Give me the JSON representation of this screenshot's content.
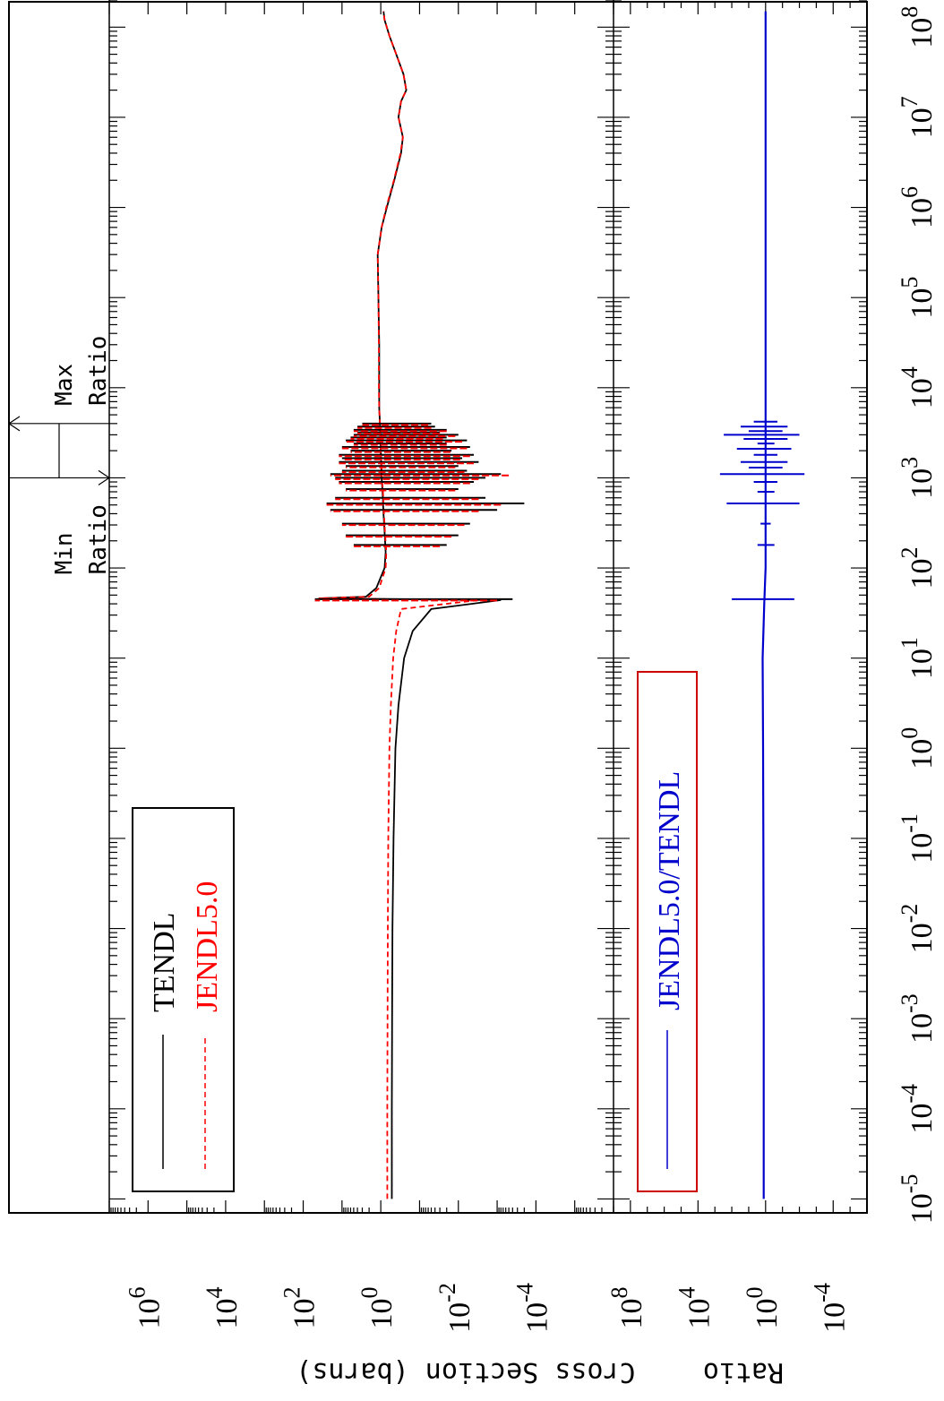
{
  "chart_data": [
    {
      "type": "line",
      "panel": "cross-section",
      "ylabel": "Cross Section (barns)",
      "x_scale": "log",
      "y_scale": "log",
      "xlim": [
        7e-06,
        200000000.0
      ],
      "ylim": [
        1e-06,
        10000000.0
      ],
      "x_ticks": [
        {
          "value": 1e-05,
          "base": "10",
          "exp": "-5"
        },
        {
          "value": 0.0001,
          "base": "10",
          "exp": "-4"
        },
        {
          "value": 0.001,
          "base": "10",
          "exp": "-3"
        },
        {
          "value": 0.01,
          "base": "10",
          "exp": "-2"
        },
        {
          "value": 0.1,
          "base": "10",
          "exp": "-1"
        },
        {
          "value": 1,
          "base": "10",
          "exp": "0"
        },
        {
          "value": 10,
          "base": "10",
          "exp": "1"
        },
        {
          "value": 100,
          "base": "10",
          "exp": "2"
        },
        {
          "value": 1000,
          "base": "10",
          "exp": "3"
        },
        {
          "value": 10000,
          "base": "10",
          "exp": "4"
        },
        {
          "value": 100000,
          "base": "10",
          "exp": "5"
        },
        {
          "value": 1000000,
          "base": "10",
          "exp": "6"
        },
        {
          "value": 10000000,
          "base": "10",
          "exp": "7"
        },
        {
          "value": 100000000,
          "base": "10",
          "exp": "8"
        }
      ],
      "y_ticks": [
        {
          "value": 1000000.0,
          "base": "10",
          "exp": "6"
        },
        {
          "value": 10000.0,
          "base": "10",
          "exp": "4"
        },
        {
          "value": 100.0,
          "base": "10",
          "exp": "2"
        },
        {
          "value": 1,
          "base": "10",
          "exp": "0"
        },
        {
          "value": 0.01,
          "base": "10",
          "exp": "-2"
        },
        {
          "value": 0.0001,
          "base": "10",
          "exp": "-4"
        }
      ],
      "legend": {
        "placement": "bottom-left"
      },
      "series": [
        {
          "name": "TENDL",
          "color": "#000000",
          "dash": "solid",
          "x": [
            1e-05,
            0.0001,
            0.001,
            0.01,
            0.1,
            1,
            3,
            10,
            20,
            35,
            44,
            46,
            48,
            60,
            100,
            150,
            250,
            400,
            700,
            1000,
            2000,
            4000,
            6000,
            10000,
            30000,
            100000,
            300000,
            600000,
            1000000,
            2000000,
            4000000,
            6000000,
            10000000,
            15000000,
            20000000,
            30000000,
            50000000,
            80000000,
            120000000,
            150000000
          ],
          "y": [
            0.52,
            0.52,
            0.51,
            0.5,
            0.47,
            0.42,
            0.35,
            0.25,
            0.15,
            0.05,
            0.0008,
            40,
            2.4,
            1.3,
            0.8,
            0.75,
            0.8,
            0.85,
            0.9,
            0.95,
            1.0,
            1.05,
            1.1,
            1.1,
            1.1,
            1.15,
            1.2,
            0.95,
            0.7,
            0.45,
            0.3,
            0.27,
            0.35,
            0.3,
            0.22,
            0.26,
            0.4,
            0.6,
            0.8,
            0.85
          ]
        },
        {
          "name": "JENDL5.0",
          "color": "#ff0000",
          "dash": "dashed",
          "x": [
            1e-05,
            0.0001,
            0.001,
            0.01,
            0.1,
            1,
            3,
            10,
            20,
            35,
            44,
            46,
            48,
            60,
            100,
            150,
            250,
            400,
            700,
            1000,
            2000,
            4000,
            6000,
            10000,
            30000,
            100000,
            300000,
            600000,
            1000000,
            2000000,
            4000000,
            6000000,
            10000000,
            15000000,
            20000000,
            30000000,
            50000000,
            80000000,
            120000000,
            150000000
          ],
          "y": [
            0.68,
            0.68,
            0.67,
            0.66,
            0.64,
            0.6,
            0.55,
            0.48,
            0.4,
            0.3,
            0.003,
            40,
            2.0,
            1.1,
            0.75,
            0.72,
            0.78,
            0.83,
            0.88,
            0.93,
            1.0,
            1.05,
            1.1,
            1.12,
            1.12,
            1.15,
            1.2,
            0.95,
            0.72,
            0.46,
            0.31,
            0.27,
            0.35,
            0.3,
            0.22,
            0.26,
            0.4,
            0.6,
            0.8,
            0.85
          ]
        }
      ],
      "resonances": [
        {
          "x": 45,
          "tendl": [
            0.0004,
            50
          ],
          "jendl": [
            0.001,
            50
          ]
        },
        {
          "x": 180,
          "tendl": [
            0.02,
            5
          ],
          "jendl": [
            0.03,
            5
          ]
        },
        {
          "x": 230,
          "tendl": [
            0.01,
            8
          ],
          "jendl": [
            0.015,
            8
          ]
        },
        {
          "x": 310,
          "tendl": [
            0.005,
            10
          ],
          "jendl": [
            0.007,
            10
          ]
        },
        {
          "x": 440,
          "tendl": [
            0.001,
            20
          ],
          "jendl": [
            0.003,
            20
          ]
        },
        {
          "x": 520,
          "tendl": [
            0.0002,
            25
          ],
          "jendl": [
            0.0008,
            25
          ]
        },
        {
          "x": 600,
          "tendl": [
            0.002,
            15
          ],
          "jendl": [
            0.003,
            15
          ]
        },
        {
          "x": 750,
          "tendl": [
            0.01,
            8
          ],
          "jendl": [
            0.012,
            8
          ]
        },
        {
          "x": 900,
          "tendl": [
            0.004,
            12
          ],
          "jendl": [
            0.005,
            12
          ]
        },
        {
          "x": 1000,
          "tendl": [
            0.002,
            15
          ],
          "jendl": [
            0.003,
            15
          ]
        },
        {
          "x": 1100,
          "tendl": [
            0.0008,
            20
          ],
          "jendl": [
            0.0005,
            20
          ]
        },
        {
          "x": 1200,
          "tendl": [
            0.006,
            10
          ],
          "jendl": [
            0.007,
            10
          ]
        },
        {
          "x": 1350,
          "tendl": [
            0.01,
            8
          ],
          "jendl": [
            0.012,
            8
          ]
        },
        {
          "x": 1500,
          "tendl": [
            0.003,
            12
          ],
          "jendl": [
            0.004,
            12
          ]
        },
        {
          "x": 1650,
          "tendl": [
            0.008,
            10
          ],
          "jendl": [
            0.009,
            10
          ]
        },
        {
          "x": 1800,
          "tendl": [
            0.004,
            12
          ],
          "jendl": [
            0.005,
            12
          ]
        },
        {
          "x": 2000,
          "tendl": [
            0.015,
            6
          ],
          "jendl": [
            0.016,
            6
          ]
        },
        {
          "x": 2200,
          "tendl": [
            0.005,
            10
          ],
          "jendl": [
            0.006,
            10
          ]
        },
        {
          "x": 2400,
          "tendl": [
            0.02,
            5
          ],
          "jendl": [
            0.02,
            5
          ]
        },
        {
          "x": 2600,
          "tendl": [
            0.006,
            8
          ],
          "jendl": [
            0.008,
            8
          ]
        },
        {
          "x": 2800,
          "tendl": [
            0.02,
            6
          ],
          "jendl": [
            0.025,
            6
          ]
        },
        {
          "x": 3000,
          "tendl": [
            0.01,
            5
          ],
          "jendl": [
            0.012,
            5
          ]
        },
        {
          "x": 3200,
          "tendl": [
            0.03,
            4
          ],
          "jendl": [
            0.03,
            4
          ]
        },
        {
          "x": 3400,
          "tendl": [
            0.02,
            5
          ],
          "jendl": [
            0.02,
            5
          ]
        },
        {
          "x": 3700,
          "tendl": [
            0.04,
            4
          ],
          "jendl": [
            0.05,
            4
          ]
        },
        {
          "x": 4000,
          "tendl": [
            0.05,
            3
          ],
          "jendl": [
            0.06,
            3
          ]
        }
      ]
    },
    {
      "type": "line",
      "panel": "ratio",
      "ylabel": "Ratio",
      "x_scale": "log",
      "y_scale": "log",
      "ylim": [
        1e-06,
        1000000000.0
      ],
      "y_ticks": [
        {
          "value": 100000000.0,
          "base": "10",
          "exp": "8"
        },
        {
          "value": 10000.0,
          "base": "10",
          "exp": "4"
        },
        {
          "value": 1,
          "base": "10",
          "exp": "0"
        },
        {
          "value": 0.0001,
          "base": "10",
          "exp": "-4"
        }
      ],
      "legend": {
        "placement": "bottom-left"
      },
      "series": [
        {
          "name": "JENDL5.0/TENDL",
          "color": "#0000cc",
          "dash": "solid",
          "x": [
            1e-05,
            0.001,
            0.1,
            1,
            10,
            40,
            100,
            1000,
            10000,
            100000,
            1000000,
            10000000,
            150000000
          ],
          "y": [
            1.3,
            1.3,
            1.35,
            1.4,
            1.5,
            1.2,
            1.0,
            1.0,
            1.0,
            1.0,
            1.0,
            1.0,
            1.0
          ]
        }
      ],
      "spikes": [
        {
          "x": 45,
          "range": [
            0.02,
            100
          ]
        },
        {
          "x": 180,
          "range": [
            0.3,
            3
          ]
        },
        {
          "x": 310,
          "range": [
            0.5,
            2
          ]
        },
        {
          "x": 520,
          "range": [
            0.01,
            200
          ]
        },
        {
          "x": 700,
          "range": [
            0.3,
            3
          ]
        },
        {
          "x": 900,
          "range": [
            0.2,
            5
          ]
        },
        {
          "x": 1100,
          "range": [
            0.005,
            500
          ]
        },
        {
          "x": 1300,
          "range": [
            0.1,
            10
          ]
        },
        {
          "x": 1500,
          "range": [
            0.05,
            30
          ]
        },
        {
          "x": 1800,
          "range": [
            0.2,
            5
          ]
        },
        {
          "x": 2100,
          "range": [
            0.03,
            50
          ]
        },
        {
          "x": 2400,
          "range": [
            0.3,
            3
          ]
        },
        {
          "x": 2700,
          "range": [
            0.05,
            20
          ]
        },
        {
          "x": 3000,
          "range": [
            0.01,
            300
          ]
        },
        {
          "x": 3300,
          "range": [
            0.1,
            10
          ]
        },
        {
          "x": 3700,
          "range": [
            0.05,
            30
          ]
        },
        {
          "x": 4200,
          "range": [
            0.2,
            5
          ]
        }
      ],
      "min_ratio": {
        "x": 1000,
        "label_line1": "Min",
        "label_line2": "Ratio"
      },
      "max_ratio": {
        "x": 4000,
        "label_line1": "Max",
        "label_line2": "Ratio"
      }
    }
  ]
}
